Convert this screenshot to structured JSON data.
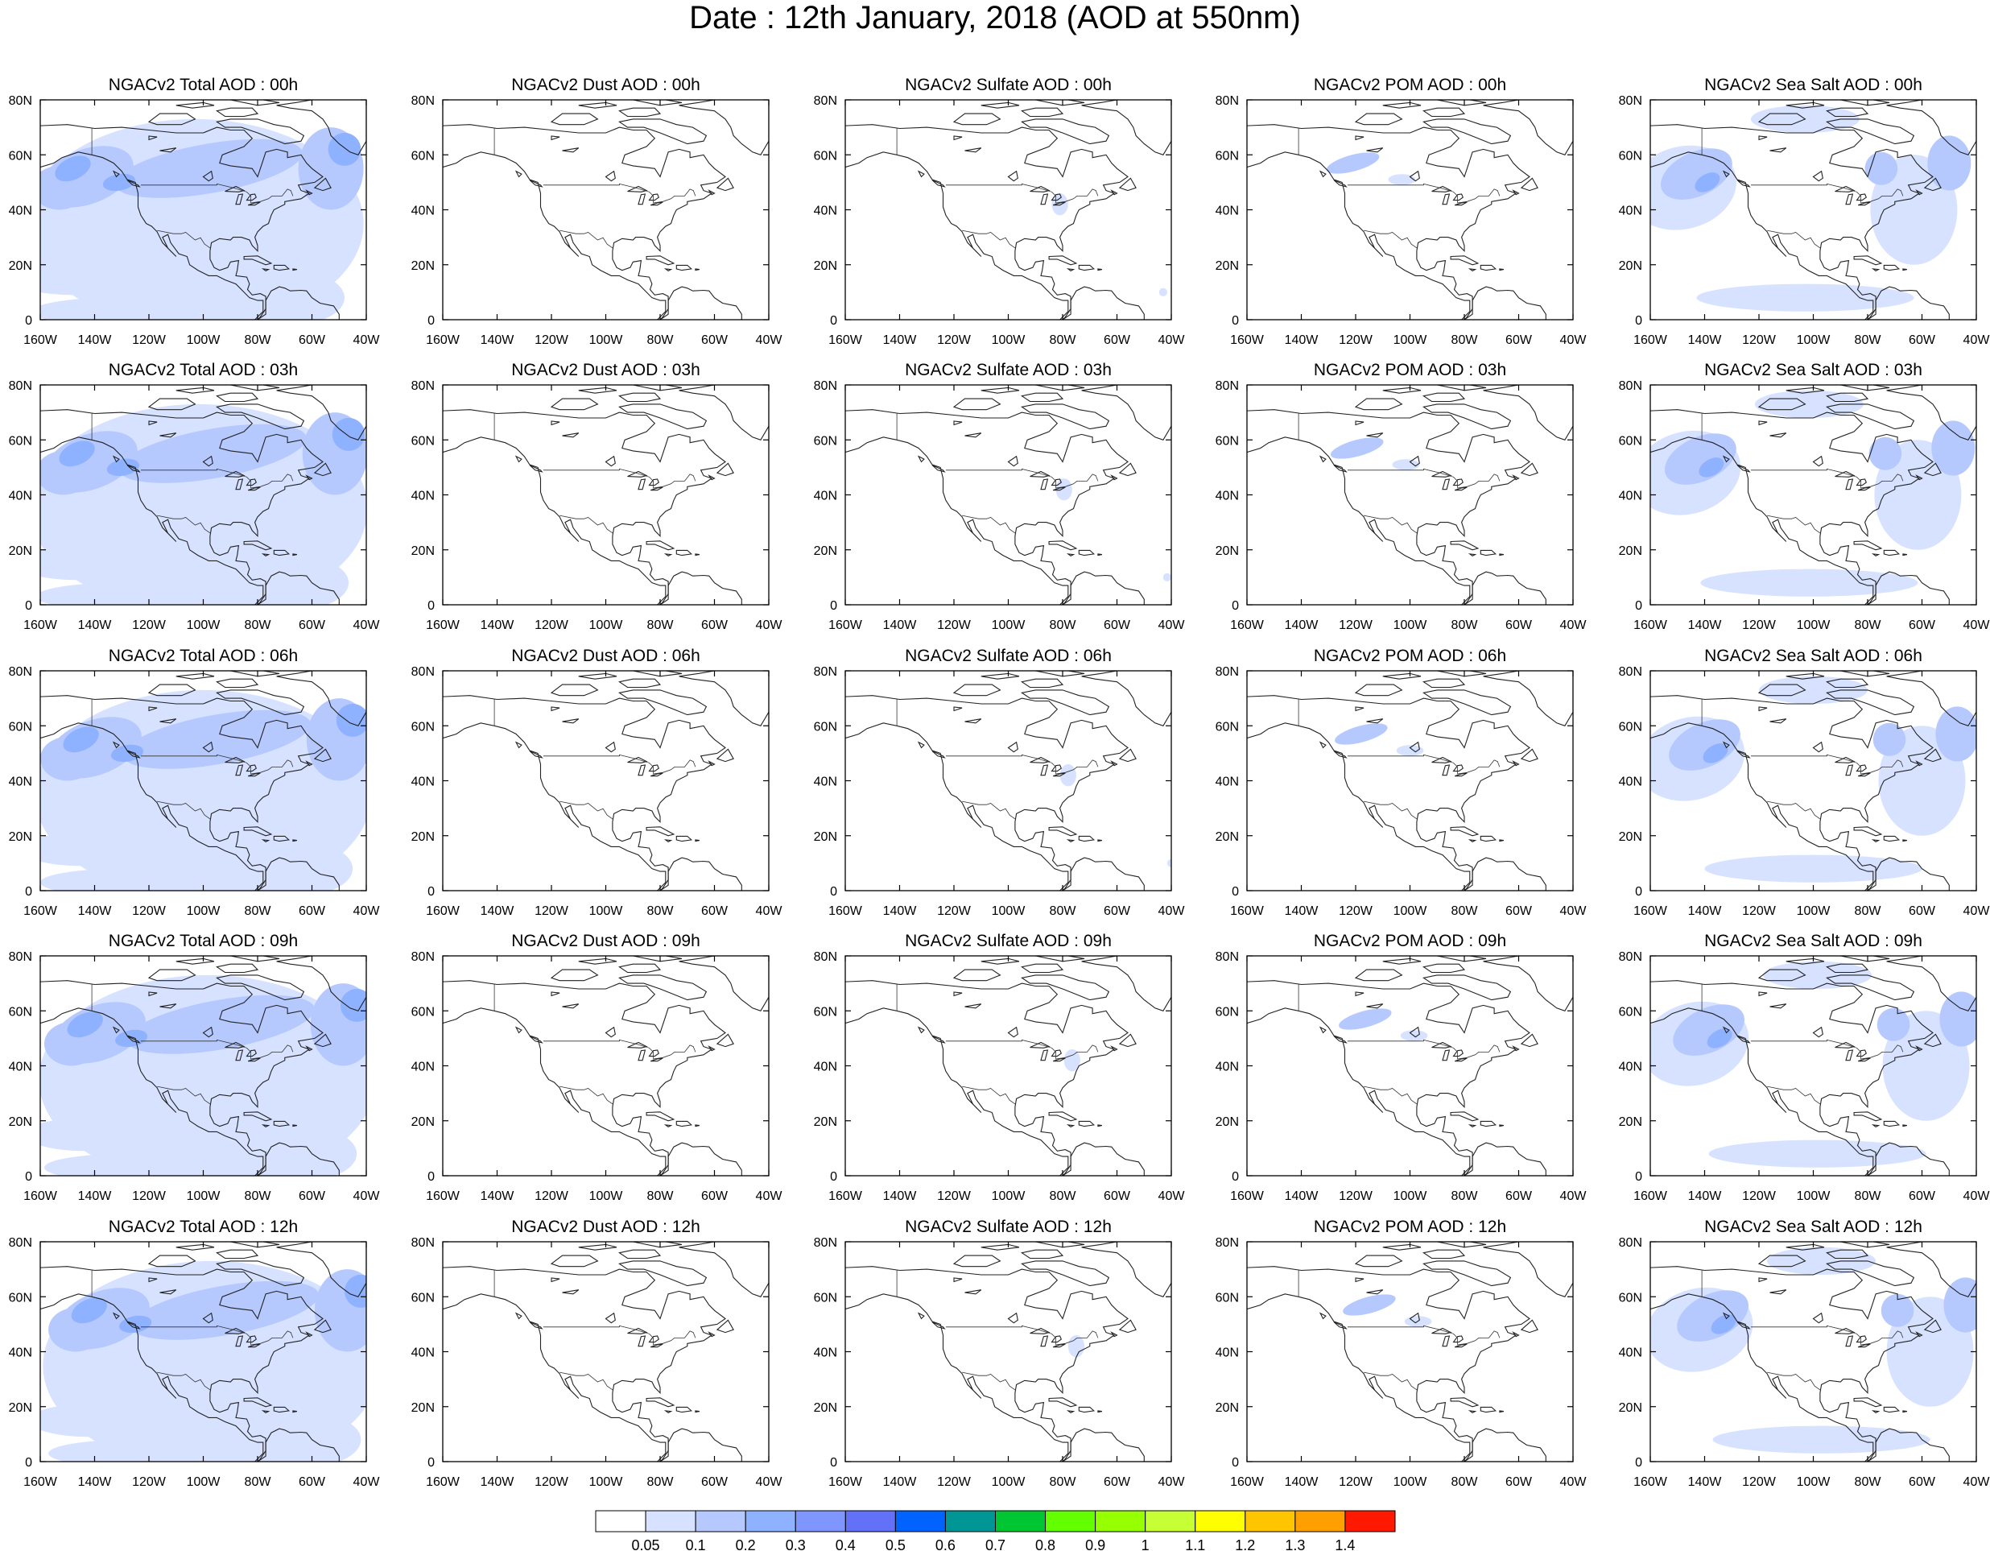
{
  "title": "Date : 12th January, 2018 (AOD at 550nm)",
  "panel_titles": [
    [
      "NGACv2 Total AOD : 00h",
      "NGACv2 Dust AOD : 00h",
      "NGACv2 Sulfate AOD : 00h",
      "NGACv2 POM AOD : 00h",
      "NGACv2 Sea Salt AOD : 00h"
    ],
    [
      "NGACv2 Total AOD : 03h",
      "NGACv2 Dust AOD : 03h",
      "NGACv2 Sulfate AOD : 03h",
      "NGACv2 POM AOD : 03h",
      "NGACv2 Sea Salt AOD : 03h"
    ],
    [
      "NGACv2 Total AOD : 06h",
      "NGACv2 Dust AOD : 06h",
      "NGACv2 Sulfate AOD : 06h",
      "NGACv2 POM AOD : 06h",
      "NGACv2 Sea Salt AOD : 06h"
    ],
    [
      "NGACv2 Total AOD : 09h",
      "NGACv2 Dust AOD : 09h",
      "NGACv2 Sulfate AOD : 09h",
      "NGACv2 POM AOD : 09h",
      "NGACv2 Sea Salt  AOD : 09h"
    ],
    [
      "NGACv2 Total AOD  : 12h",
      "NGACv2 Dust AOD : 12h",
      "NGACv2 Sulfate AOD : 12h",
      "NGACv2 POM  AOD : 12h",
      "NGACv2 Sea Salt  AOD : 12h"
    ]
  ],
  "lat_ticks": [
    "80N",
    "60N",
    "40N",
    "20N",
    "0"
  ],
  "lon_ticks": [
    "160W",
    "140W",
    "120W",
    "100W",
    "80W",
    "60W",
    "40W"
  ],
  "colorbar": {
    "labels": [
      "0.05",
      "0.1",
      "0.2",
      "0.3",
      "0.4",
      "0.5",
      "0.6",
      "0.7",
      "0.8",
      "0.9",
      "1",
      "1.1",
      "1.2",
      "1.3",
      "1.4"
    ],
    "colors": [
      "#ffffff",
      "#d6e2ff",
      "#b5c9ff",
      "#8eb2ff",
      "#7f96ff",
      "#6370f8",
      "#0063ff",
      "#009696",
      "#00c633",
      "#63ff00",
      "#96ff00",
      "#c6ff33",
      "#ffff00",
      "#ffc600",
      "#ffa000",
      "#ff7c00",
      "#ff1900"
    ]
  },
  "chart_data": {
    "type": "heatmap",
    "title": "Date : 12th January, 2018 (AOD at 550nm)",
    "variables": [
      "Total",
      "Dust",
      "Sulfate",
      "POM",
      "Sea Salt"
    ],
    "forecast_hours": [
      "00h",
      "03h",
      "06h",
      "09h",
      "12h"
    ],
    "domain": {
      "lon_range": [
        -160,
        -40
      ],
      "lat_range": [
        0,
        80
      ]
    },
    "plumes": [
      {
        "var": "Total",
        "hours": "all",
        "lon_range": [
          -160,
          -40
        ],
        "lat_range": [
          0,
          75
        ],
        "aod": 0.1,
        "note": "widespread"
      },
      {
        "var": "Total",
        "hours": "all",
        "lon_center": -145,
        "lat_center": 52,
        "aod": 0.3
      },
      {
        "var": "Dust",
        "hours": "all",
        "aod": 0.05
      },
      {
        "var": "Sulfate",
        "hours": "all",
        "lon_center": -78,
        "lat_center": 42,
        "aod": 0.1
      },
      {
        "var": "POM",
        "hours": "all",
        "lon_center": -118,
        "lat_center": 57,
        "aod": 0.2
      },
      {
        "var": "Sea Salt",
        "hours": "all",
        "lon_center": -140,
        "lat_center": 52,
        "aod": 0.2
      },
      {
        "var": "Sea Salt",
        "hours": "all",
        "lon_center": -45,
        "lat_center": 55,
        "aod": 0.1
      }
    ]
  }
}
